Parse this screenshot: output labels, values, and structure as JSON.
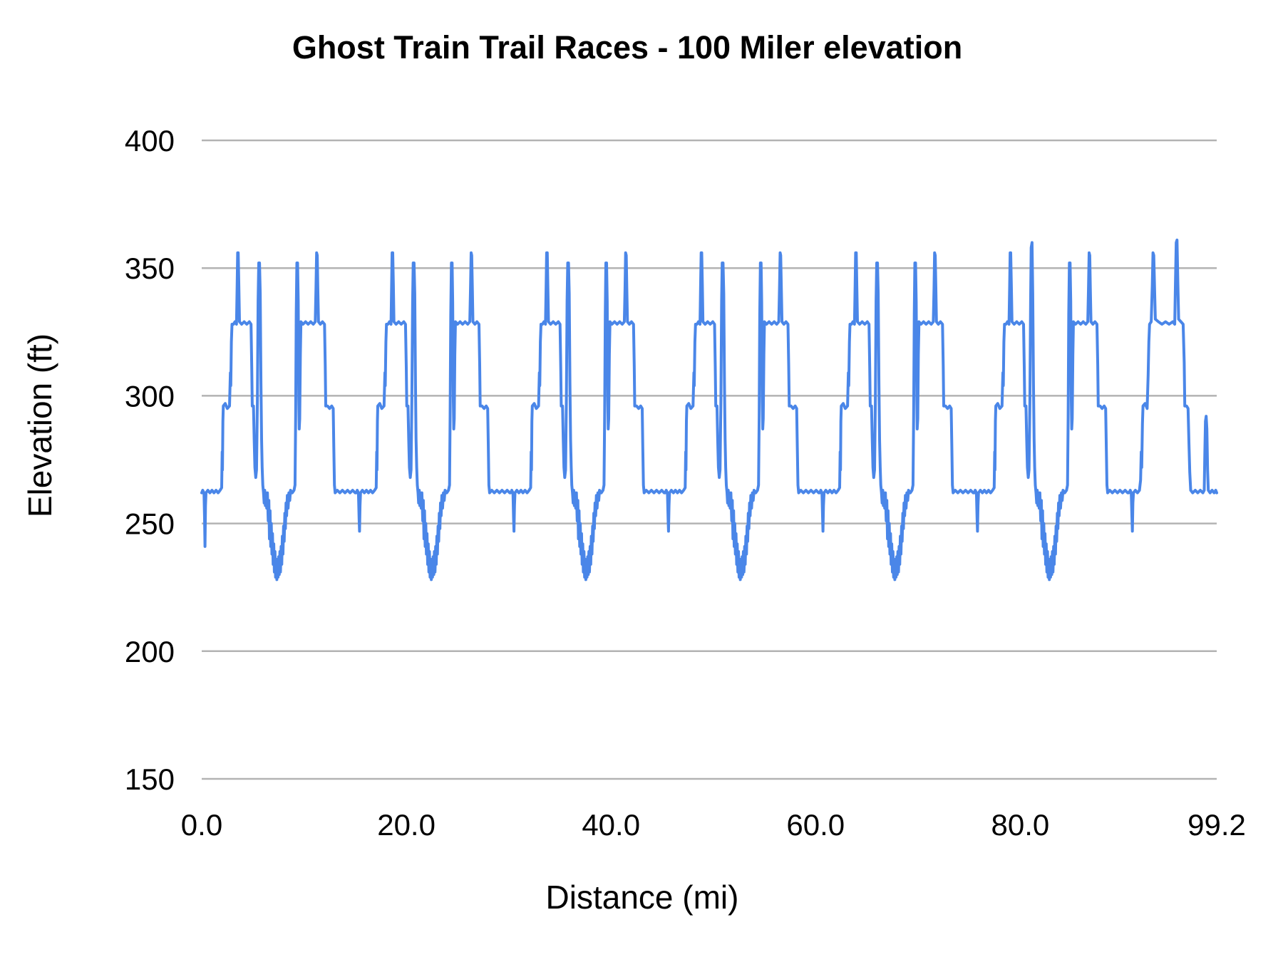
{
  "page": {
    "background": "#ffffff"
  },
  "chart_data": {
    "type": "line",
    "title": "Ghost Train Trail Races - 100 Miler elevation",
    "xlabel": "Distance (mi)",
    "ylabel": "Elevation (ft)",
    "x_ticks": [
      "0.0",
      "20.0",
      "40.0",
      "60.0",
      "80.0",
      "99.2"
    ],
    "y_ticks": [
      "150",
      "200",
      "250",
      "300",
      "350",
      "400"
    ],
    "xlim": [
      0,
      99.2
    ],
    "ylim": [
      150,
      400
    ],
    "grid": true,
    "legend": "none",
    "line_color": "#4a86e8",
    "gridline_color": "#b3b3b3",
    "text_color": "#000000",
    "series_name": "elevation",
    "lap_length_mi": 15.1,
    "laps": [
      {
        "start_mile": 0,
        "overrides": {
          "4": 241
        }
      },
      {
        "start_mile": 15.1,
        "overrides": {
          "4": 247
        }
      },
      {
        "start_mile": 30.2,
        "overrides": {
          "4": 247
        }
      },
      {
        "start_mile": 45.3,
        "overrides": {
          "4": 247
        }
      },
      {
        "start_mile": 60.4,
        "overrides": {
          "4": 247
        }
      },
      {
        "start_mile": 75.5,
        "overrides": {
          "4": 247,
          "48": 358,
          "49": 360
        }
      }
    ],
    "lap_profile_mi_ft": [
      [
        0.0,
        262
      ],
      [
        0.1,
        263
      ],
      [
        0.22,
        262
      ],
      [
        0.28,
        252
      ],
      [
        0.32,
        246
      ],
      [
        0.37,
        257
      ],
      [
        0.42,
        262
      ],
      [
        0.6,
        263
      ],
      [
        0.8,
        262
      ],
      [
        1.0,
        263
      ],
      [
        1.2,
        262
      ],
      [
        1.4,
        263
      ],
      [
        1.6,
        262
      ],
      [
        1.8,
        263
      ],
      [
        1.95,
        264
      ],
      [
        2.0,
        278
      ],
      [
        2.03,
        271
      ],
      [
        2.07,
        290
      ],
      [
        2.11,
        296
      ],
      [
        2.3,
        297
      ],
      [
        2.5,
        295
      ],
      [
        2.72,
        296
      ],
      [
        2.8,
        309
      ],
      [
        2.84,
        304
      ],
      [
        2.9,
        321
      ],
      [
        2.96,
        328
      ],
      [
        3.1,
        328
      ],
      [
        3.25,
        329
      ],
      [
        3.4,
        328
      ],
      [
        3.46,
        343
      ],
      [
        3.51,
        356
      ],
      [
        3.57,
        356
      ],
      [
        3.63,
        343
      ],
      [
        3.69,
        329
      ],
      [
        3.9,
        328
      ],
      [
        4.15,
        329
      ],
      [
        4.4,
        328
      ],
      [
        4.65,
        329
      ],
      [
        4.82,
        328
      ],
      [
        4.89,
        311
      ],
      [
        4.94,
        296
      ],
      [
        5.06,
        296
      ],
      [
        5.13,
        283
      ],
      [
        5.2,
        272
      ],
      [
        5.28,
        268
      ],
      [
        5.36,
        271
      ],
      [
        5.44,
        298
      ],
      [
        5.51,
        337
      ],
      [
        5.57,
        352
      ],
      [
        5.65,
        352
      ],
      [
        5.72,
        340
      ],
      [
        5.79,
        305
      ],
      [
        5.85,
        283
      ],
      [
        5.91,
        272
      ],
      [
        5.97,
        265
      ],
      [
        6.04,
        262
      ],
      [
        6.1,
        258
      ],
      [
        6.16,
        263
      ],
      [
        6.22,
        257
      ],
      [
        6.28,
        262
      ],
      [
        6.35,
        256
      ],
      [
        6.42,
        262
      ],
      [
        6.5,
        251
      ],
      [
        6.56,
        259
      ],
      [
        6.62,
        244
      ],
      [
        6.68,
        255
      ],
      [
        6.74,
        241
      ],
      [
        6.8,
        250
      ],
      [
        6.86,
        238
      ],
      [
        6.92,
        246
      ],
      [
        6.98,
        234
      ],
      [
        7.04,
        242
      ],
      [
        7.1,
        231
      ],
      [
        7.16,
        239
      ],
      [
        7.22,
        229
      ],
      [
        7.28,
        236
      ],
      [
        7.34,
        228
      ],
      [
        7.4,
        234
      ],
      [
        7.46,
        229
      ],
      [
        7.52,
        237
      ],
      [
        7.58,
        230
      ],
      [
        7.64,
        239
      ],
      [
        7.7,
        231
      ],
      [
        7.76,
        241
      ],
      [
        7.82,
        234
      ],
      [
        7.88,
        245
      ],
      [
        7.94,
        238
      ],
      [
        8.0,
        249
      ],
      [
        8.06,
        243
      ],
      [
        8.12,
        254
      ],
      [
        8.18,
        248
      ],
      [
        8.24,
        258
      ],
      [
        8.3,
        253
      ],
      [
        8.37,
        261
      ],
      [
        8.44,
        256
      ],
      [
        8.52,
        262
      ],
      [
        8.6,
        259
      ],
      [
        8.68,
        263
      ],
      [
        8.85,
        262
      ],
      [
        9.02,
        263
      ],
      [
        9.12,
        265
      ],
      [
        9.18,
        292
      ],
      [
        9.24,
        332
      ],
      [
        9.3,
        352
      ],
      [
        9.37,
        352
      ],
      [
        9.43,
        337
      ],
      [
        9.49,
        298
      ],
      [
        9.53,
        287
      ],
      [
        9.58,
        291
      ],
      [
        9.64,
        316
      ],
      [
        9.7,
        329
      ],
      [
        9.9,
        328
      ],
      [
        10.15,
        329
      ],
      [
        10.4,
        328
      ],
      [
        10.65,
        329
      ],
      [
        10.9,
        328
      ],
      [
        11.1,
        329
      ],
      [
        11.17,
        342
      ],
      [
        11.23,
        356
      ],
      [
        11.29,
        355
      ],
      [
        11.35,
        342
      ],
      [
        11.41,
        329
      ],
      [
        11.6,
        328
      ],
      [
        11.8,
        329
      ],
      [
        12.0,
        328
      ],
      [
        12.07,
        312
      ],
      [
        12.12,
        296
      ],
      [
        12.3,
        296
      ],
      [
        12.5,
        295
      ],
      [
        12.7,
        296
      ],
      [
        12.85,
        295
      ],
      [
        12.91,
        280
      ],
      [
        12.97,
        265
      ],
      [
        13.04,
        262
      ],
      [
        13.25,
        263
      ],
      [
        13.5,
        262
      ],
      [
        13.75,
        263
      ],
      [
        14.0,
        262
      ],
      [
        14.25,
        263
      ],
      [
        14.5,
        262
      ],
      [
        14.75,
        263
      ],
      [
        15.0,
        262
      ]
    ],
    "final_segment_mi_ft": [
      [
        90.62,
        262
      ],
      [
        90.75,
        263
      ],
      [
        90.85,
        262
      ],
      [
        90.91,
        253
      ],
      [
        90.96,
        247
      ],
      [
        91.01,
        258
      ],
      [
        91.06,
        262
      ],
      [
        91.25,
        263
      ],
      [
        91.45,
        262
      ],
      [
        91.65,
        263
      ],
      [
        91.76,
        267
      ],
      [
        91.82,
        278
      ],
      [
        91.87,
        272
      ],
      [
        91.94,
        289
      ],
      [
        92.0,
        296
      ],
      [
        92.2,
        297
      ],
      [
        92.4,
        295
      ],
      [
        92.5,
        308
      ],
      [
        92.57,
        321
      ],
      [
        92.64,
        328
      ],
      [
        92.8,
        329
      ],
      [
        92.9,
        343
      ],
      [
        92.97,
        356
      ],
      [
        93.05,
        355
      ],
      [
        93.13,
        341
      ],
      [
        93.2,
        330
      ],
      [
        93.5,
        329
      ],
      [
        93.85,
        328
      ],
      [
        94.2,
        329
      ],
      [
        94.55,
        328
      ],
      [
        94.9,
        329
      ],
      [
        95.1,
        328
      ],
      [
        95.17,
        344
      ],
      [
        95.24,
        360
      ],
      [
        95.32,
        361
      ],
      [
        95.4,
        344
      ],
      [
        95.48,
        330
      ],
      [
        95.7,
        329
      ],
      [
        95.92,
        328
      ],
      [
        96.02,
        313
      ],
      [
        96.08,
        296
      ],
      [
        96.25,
        296
      ],
      [
        96.4,
        295
      ],
      [
        96.49,
        281
      ],
      [
        96.57,
        270
      ],
      [
        96.66,
        263
      ],
      [
        96.85,
        262
      ],
      [
        97.1,
        263
      ],
      [
        97.35,
        262
      ],
      [
        97.6,
        263
      ],
      [
        97.85,
        262
      ],
      [
        97.98,
        263
      ],
      [
        98.04,
        277
      ],
      [
        98.1,
        290
      ],
      [
        98.17,
        292
      ],
      [
        98.24,
        287
      ],
      [
        98.31,
        271
      ],
      [
        98.38,
        263
      ],
      [
        98.55,
        262
      ],
      [
        98.75,
        263
      ],
      [
        98.95,
        262
      ],
      [
        99.1,
        263
      ],
      [
        99.2,
        262
      ]
    ]
  }
}
